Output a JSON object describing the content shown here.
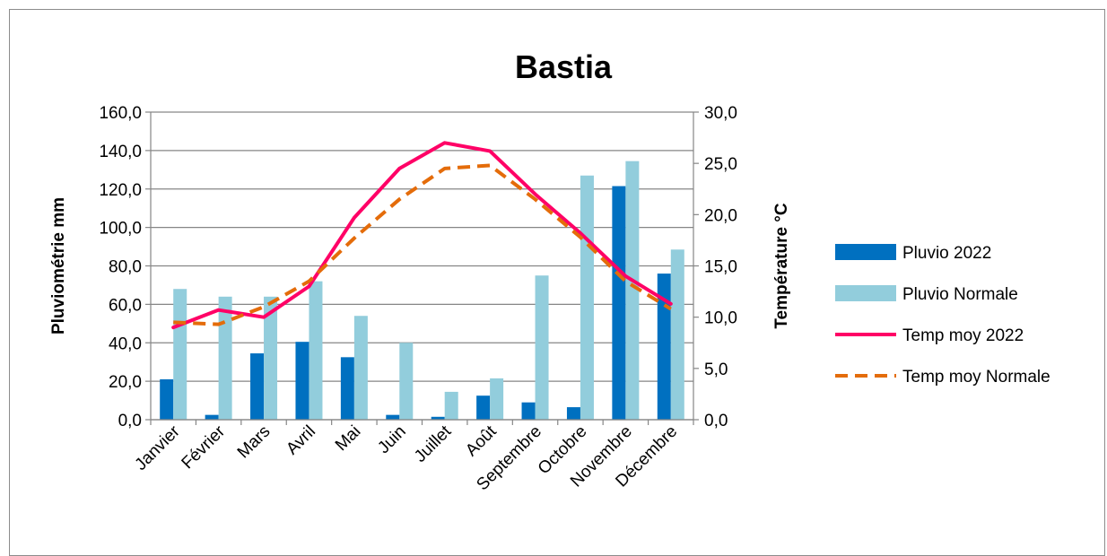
{
  "chart_data": {
    "type": "bar",
    "title": "Bastia",
    "categories": [
      "Janvier",
      "Février",
      "Mars",
      "Avril",
      "Mai",
      "Juin",
      "Juillet",
      "Août",
      "Septembre",
      "Octobre",
      "Novembre",
      "Décembre"
    ],
    "y_left": {
      "label": "Pluviométrie mm",
      "lim": [
        0,
        160
      ],
      "ticks": [
        "0,0",
        "20,0",
        "40,0",
        "60,0",
        "80,0",
        "100,0",
        "120,0",
        "140,0",
        "160,0"
      ]
    },
    "y_right": {
      "label": "Température °C",
      "lim": [
        0,
        30
      ],
      "ticks": [
        "0,0",
        "5,0",
        "10,0",
        "15,0",
        "20,0",
        "25,0",
        "30,0"
      ]
    },
    "grid": "horizontal",
    "legend_position": "right",
    "series": [
      {
        "name": "Pluvio 2022",
        "type": "bar",
        "axis": "left",
        "color": "#0070c0",
        "values": [
          21.0,
          2.5,
          34.5,
          40.5,
          32.5,
          2.5,
          1.5,
          12.5,
          9.0,
          6.5,
          121.5,
          76.0
        ]
      },
      {
        "name": "Pluvio Normale",
        "type": "bar",
        "axis": "left",
        "color": "#92cddc",
        "values": [
          68.0,
          64.0,
          64.0,
          72.0,
          54.0,
          40.0,
          14.5,
          21.5,
          75.0,
          127.0,
          134.5,
          88.5
        ]
      },
      {
        "name": "Temp moy 2022",
        "type": "line",
        "axis": "right",
        "color": "#ff0066",
        "dash": "solid",
        "values": [
          9.0,
          10.7,
          10.0,
          13.0,
          19.7,
          24.5,
          27.0,
          26.2,
          22.0,
          18.2,
          14.0,
          11.3
        ]
      },
      {
        "name": "Temp moy Normale",
        "type": "line",
        "axis": "right",
        "color": "#e46c0a",
        "dash": "dashed",
        "values": [
          9.5,
          9.3,
          11.0,
          13.5,
          17.7,
          21.5,
          24.5,
          24.8,
          21.5,
          17.8,
          13.5,
          10.8
        ]
      }
    ]
  }
}
